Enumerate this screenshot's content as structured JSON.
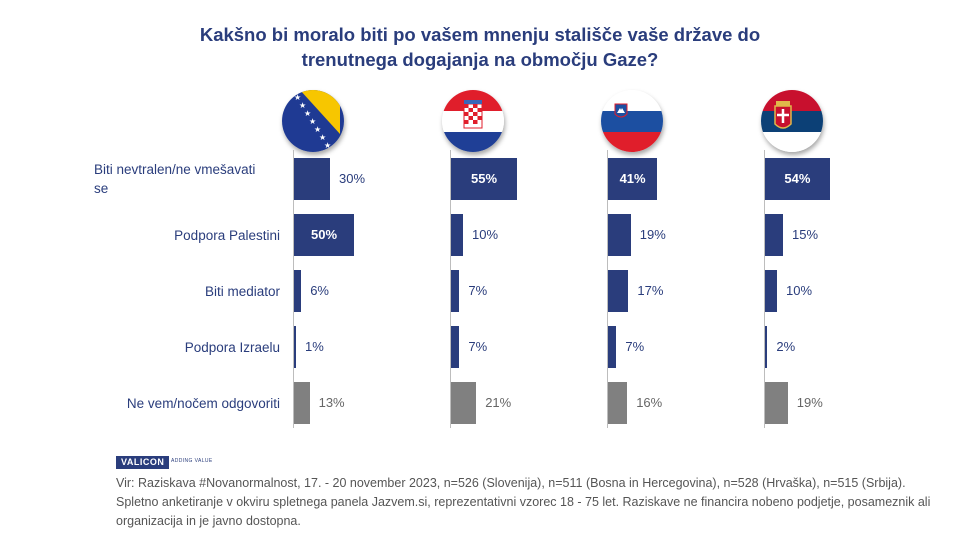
{
  "title": {
    "line1": "Kakšno bi moralo biti po vašem mnenju stališče vaše države do",
    "line2": "trenutnega dogajanja  na območju Gaze?"
  },
  "colors": {
    "primary": "#2a3d7c",
    "dont_know": "#808080"
  },
  "chart_data": {
    "type": "bar",
    "orientation": "horizontal",
    "title": "Kakšno bi moralo biti po vašem mnenju stališče vaše države do trenutnega dogajanja  na območju Gaze?",
    "categories": [
      "Biti nevtralen/ne vmešavati se",
      "Podpora Palestini",
      "Biti mediator",
      "Podpora Izraelu",
      "Ne vem/nočem odgovoriti"
    ],
    "series": [
      {
        "flag": "bosnia-flag-icon",
        "values": [
          30,
          50,
          6,
          1,
          13
        ]
      },
      {
        "flag": "croatia-flag-icon",
        "values": [
          55,
          10,
          7,
          7,
          21
        ]
      },
      {
        "flag": "slovenia-flag-icon",
        "values": [
          41,
          19,
          17,
          7,
          16
        ]
      },
      {
        "flag": "serbia-flag-icon",
        "values": [
          54,
          15,
          10,
          2,
          19
        ]
      }
    ],
    "value_suffix": "%"
  },
  "category_labels": {
    "neutral_line1": "Biti nevtralen/ne vmešavati",
    "neutral_line2": "se",
    "palestine": "Podpora Palestini",
    "mediator": "Biti mediator",
    "israel": "Podpora Izraelu",
    "dont_know": "Ne vem/nočem odgovoriti"
  },
  "logo": {
    "brand": "VALICON",
    "tagline": "ADDING VALUE"
  },
  "source": "Vir: Raziskava #Novanormalnost, 17. - 20 november 2023, n=526 (Slovenija), n=511 (Bosna in Hercegovina), n=528 (Hrvaška), n=515 (Srbija). Spletno anketiranje v okviru spletnega panela Jazvem.si, reprezentativni vzorec 18 - 75 let. Raziskave ne financira nobeno podjetje, posameznik ali organizacija in je javno dostopna."
}
